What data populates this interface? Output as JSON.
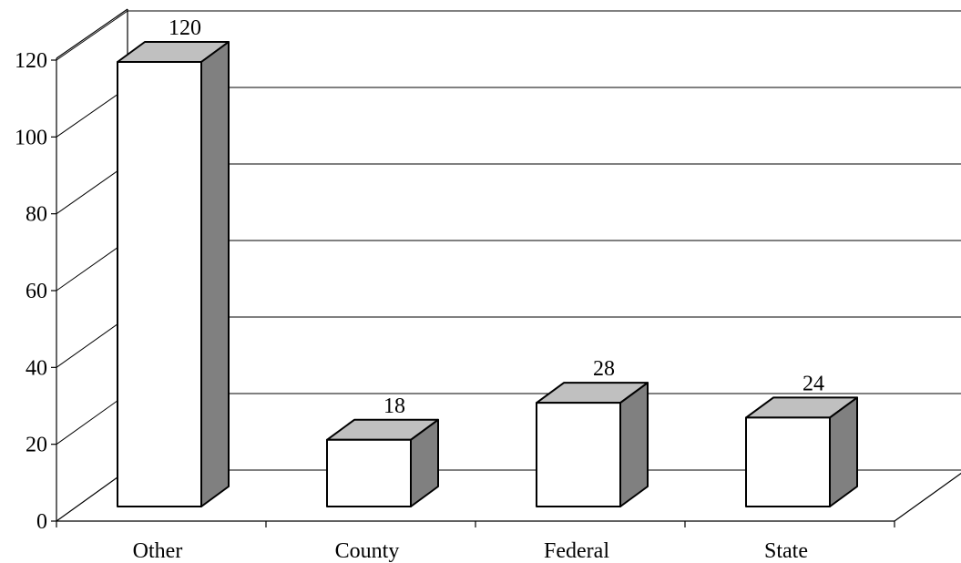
{
  "chart_data": {
    "type": "bar",
    "categories": [
      "Other",
      "County",
      "Federal",
      "State"
    ],
    "values": [
      120,
      18,
      28,
      24
    ],
    "data_labels": [
      "120",
      "18",
      "28",
      "24"
    ],
    "y_ticks": [
      "0",
      "20",
      "40",
      "60",
      "80",
      "100",
      "120"
    ],
    "ylim": [
      0,
      120
    ],
    "grid": true,
    "three_d": true,
    "colors": {
      "bar_front": "#ffffff",
      "bar_top": "#c0c0c0",
      "bar_side": "#808080",
      "line": "#000000"
    }
  }
}
